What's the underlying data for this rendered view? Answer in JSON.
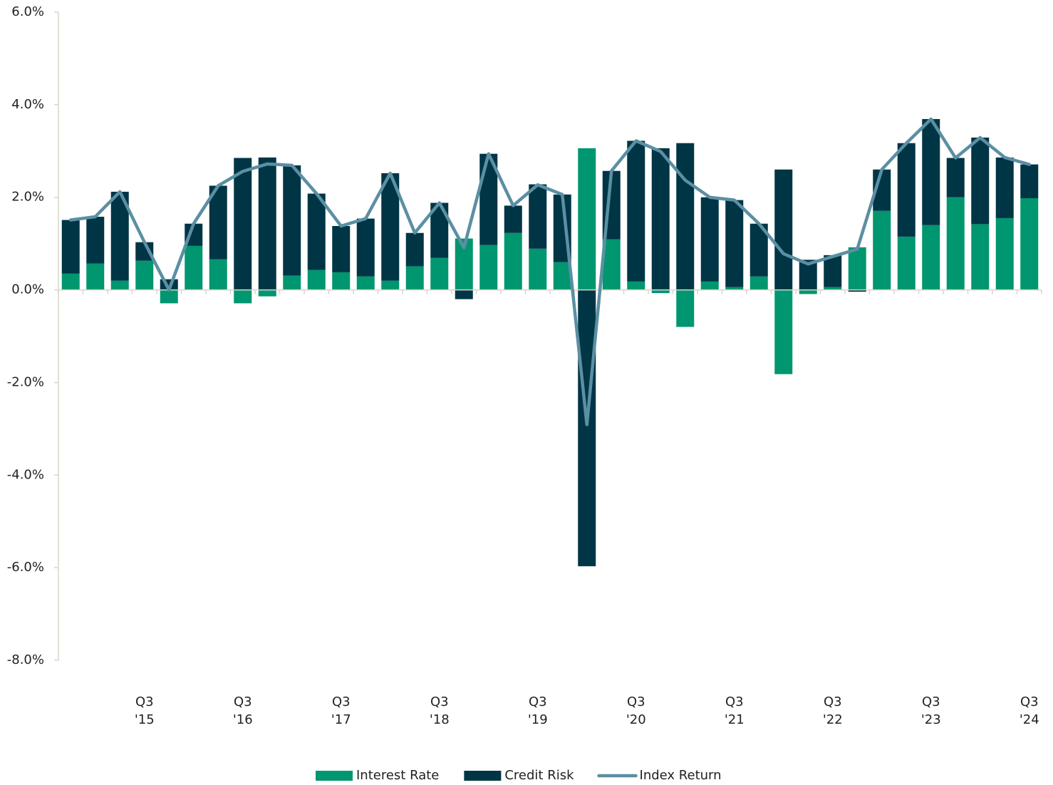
{
  "chart_data": {
    "type": "bar",
    "stacked": true,
    "categories": [
      null,
      null,
      null,
      "Q3 '15",
      null,
      null,
      null,
      "Q3 '16",
      null,
      null,
      null,
      "Q3 '17",
      null,
      null,
      null,
      "Q3 '18",
      null,
      null,
      null,
      "Q3 '19",
      null,
      null,
      null,
      "Q3 '20",
      null,
      null,
      null,
      "Q3 '21",
      null,
      null,
      null,
      "Q3 '22",
      null,
      null,
      null,
      "Q3 '23",
      null,
      null,
      null,
      "Q3 '24"
    ],
    "series": [
      {
        "name": "Interest Rate",
        "type": "bar",
        "color": "#00966f",
        "values": [
          0.35,
          0.57,
          0.2,
          0.63,
          -0.29,
          0.95,
          0.66,
          -0.29,
          -0.14,
          0.31,
          0.43,
          0.38,
          0.29,
          0.2,
          0.51,
          0.69,
          1.11,
          0.97,
          1.23,
          0.89,
          0.6,
          3.06,
          1.09,
          0.18,
          -0.07,
          -0.8,
          0.18,
          0.06,
          0.29,
          -1.82,
          -0.09,
          0.06,
          0.92,
          1.71,
          1.15,
          1.4,
          2.0,
          1.42,
          1.55,
          1.98
        ]
      },
      {
        "name": "Credit Risk",
        "type": "bar",
        "color": "#003545",
        "values": [
          1.16,
          1.01,
          1.92,
          0.4,
          0.23,
          0.48,
          1.59,
          2.85,
          2.86,
          2.38,
          1.65,
          1.0,
          1.25,
          2.32,
          0.72,
          1.19,
          -0.2,
          1.97,
          0.59,
          1.39,
          1.46,
          -5.97,
          1.48,
          3.04,
          3.06,
          3.17,
          1.82,
          1.88,
          1.14,
          2.6,
          0.65,
          0.69,
          -0.04,
          0.89,
          2.02,
          2.29,
          0.85,
          1.87,
          1.31,
          0.73
        ]
      },
      {
        "name": "Index Return",
        "type": "line",
        "color": "#5b8fa3",
        "values": [
          1.51,
          1.58,
          2.12,
          1.03,
          0.0,
          1.43,
          2.25,
          2.56,
          2.72,
          2.69,
          2.08,
          1.38,
          1.54,
          2.52,
          1.23,
          1.88,
          0.91,
          2.94,
          1.82,
          2.27,
          2.06,
          -2.91,
          2.57,
          3.22,
          2.99,
          2.37,
          2.0,
          1.94,
          1.43,
          0.78,
          0.56,
          0.72,
          0.88,
          2.6,
          3.17,
          3.69,
          2.85,
          3.29,
          2.86,
          2.71
        ]
      }
    ],
    "ylim": [
      -8,
      6
    ],
    "yticks": [
      {
        "value": -8,
        "label": "-8.0%"
      },
      {
        "value": -6,
        "label": "-6.0%"
      },
      {
        "value": -4,
        "label": "-4.0%"
      },
      {
        "value": -2,
        "label": "-2.0%"
      },
      {
        "value": 0,
        "label": "0.0%"
      },
      {
        "value": 2,
        "label": "2.0%"
      },
      {
        "value": 4,
        "label": "4.0%"
      },
      {
        "value": 6,
        "label": "6.0%"
      }
    ],
    "grid": false,
    "legend": "bottom"
  }
}
